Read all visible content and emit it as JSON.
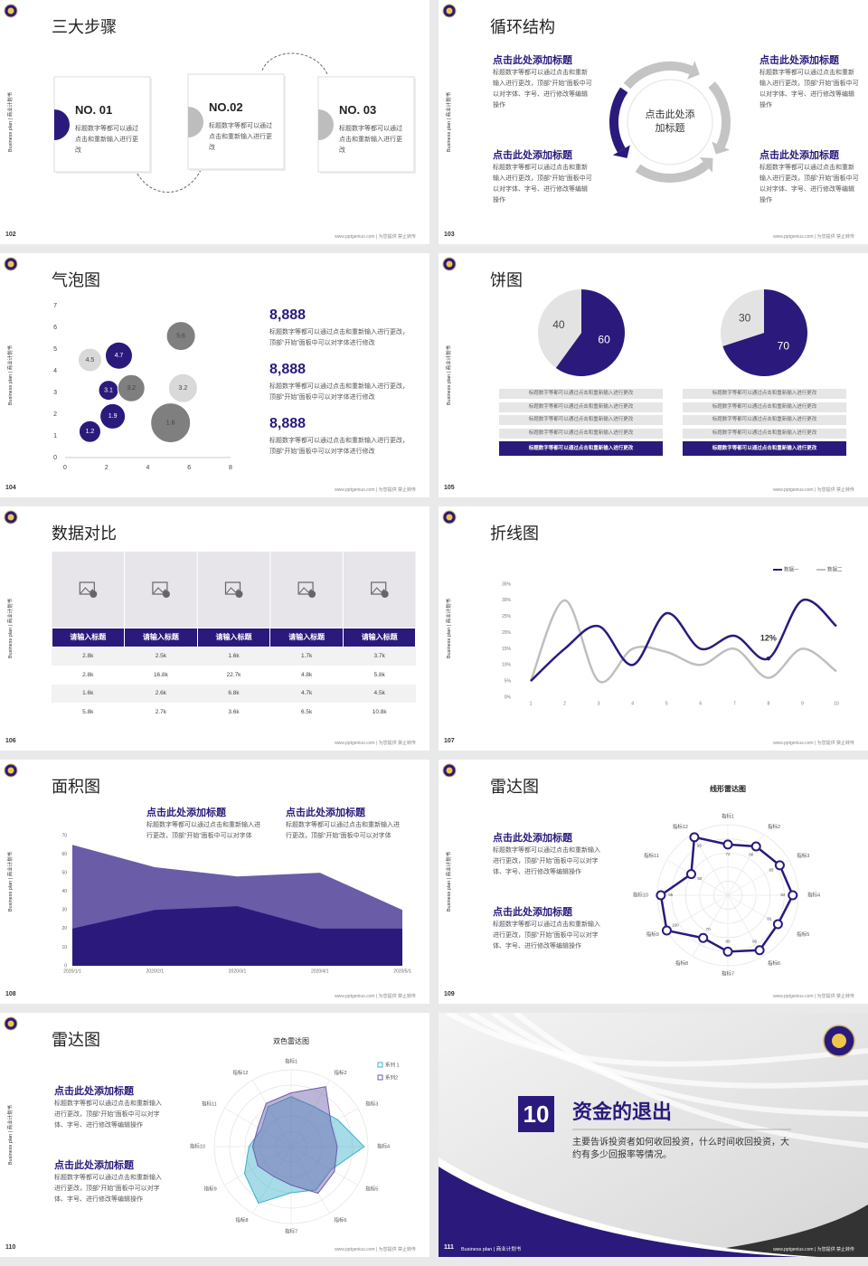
{
  "footer": "www.pptgenius.com | 为您提供 禁止转传",
  "side_label": "Business plan | 商业计划书",
  "slides": [
    {
      "page": "102",
      "title": "三大步骤",
      "steps": [
        {
          "label": "NO. 01",
          "text": "标题数字等都可以通过点击和重新输入进行更改"
        },
        {
          "label": "NO.02",
          "text": "标题数字等都可以通过点击和重新输入进行更改"
        },
        {
          "label": "NO. 03",
          "text": "标题数字等都可以通过点击和重新输入进行更改"
        }
      ]
    },
    {
      "page": "103",
      "title": "循环结构",
      "center": "点击此处添加标题",
      "blocks": [
        {
          "heading": "点击此处添加标题",
          "text": "标题数字等都可以通过点击和重新输入进行更改，顶部“开始”面板中可以对字体、字号、进行修改等编辑操作"
        },
        {
          "heading": "点击此处添加标题",
          "text": "标题数字等都可以通过点击和重新输入进行更改，顶部“开始”面板中可以对字体、字号、进行修改等编辑操作"
        },
        {
          "heading": "点击此处添加标题",
          "text": "标题数字等都可以通过点击和重新输入进行更改，顶部“开始”面板中可以对字体、字号、进行修改等编辑操作"
        },
        {
          "heading": "点击此处添加标题",
          "text": "标题数字等都可以通过点击和重新输入进行更改，顶部“开始”面板中可以对字体、字号、进行修改等编辑操作"
        }
      ]
    },
    {
      "page": "104",
      "title": "气泡图",
      "chart_data": {
        "type": "bubble",
        "xlim": [
          0,
          8
        ],
        "xticks": [
          0,
          2,
          4,
          6,
          8
        ],
        "ylim": [
          0,
          7
        ],
        "yticks": [
          0,
          1,
          2,
          3,
          4,
          5,
          6,
          7
        ],
        "series": [
          {
            "color": "#2b1a7c",
            "x": [
              2.6,
              2.1,
              2.3,
              1.2
            ],
            "values": [
              4.7,
              3.1,
              1.9,
              1.2
            ],
            "sizes": [
              15,
              11,
              14,
              12
            ]
          },
          {
            "color": "#7f7f7f",
            "x": [
              5.6,
              3.2,
              5.1
            ],
            "values": [
              5.6,
              3.2,
              1.6
            ],
            "sizes": [
              16,
              15,
              22
            ]
          },
          {
            "color": "#d9d9d9",
            "x": [
              1.2,
              5.7
            ],
            "values": [
              4.5,
              3.2
            ],
            "sizes": [
              13,
              16
            ]
          }
        ]
      },
      "stats": [
        {
          "value": "8,888",
          "text": "标题数字等都可以通过点击和重新输入进行更改，顶部“开始”面板中可以对字体进行修改"
        },
        {
          "value": "8,888",
          "text": "标题数字等都可以通过点击和重新输入进行更改，顶部“开始”面板中可以对字体进行修改"
        },
        {
          "value": "8,888",
          "text": "标题数字等都可以通过点击和重新输入进行更改，顶部“开始”面板中可以对字体进行修改"
        }
      ]
    },
    {
      "page": "105",
      "title": "饼图",
      "chart_data": [
        {
          "type": "pie",
          "values": [
            60,
            40
          ],
          "colors": [
            "#2b1a7c",
            "#e3e3e3"
          ]
        },
        {
          "type": "pie",
          "values": [
            70,
            30
          ],
          "colors": [
            "#2b1a7c",
            "#e3e3e3"
          ]
        }
      ],
      "lists": [
        [
          "标题数字等都可以通过点击和重新输入进行更改",
          "标题数字等都可以通过点击和重新输入进行更改",
          "标题数字等都可以通过点击和重新输入进行更改",
          "标题数字等都可以通过点击和重新输入进行更改",
          "标题数字等都可以通过点击和重新输入进行更改"
        ],
        [
          "标题数字等都可以通过点击和重新输入进行更改",
          "标题数字等都可以通过点击和重新输入进行更改",
          "标题数字等都可以通过点击和重新输入进行更改",
          "标题数字等都可以通过点击和重新输入进行更改",
          "标题数字等都可以通过点击和重新输入进行更改"
        ]
      ]
    },
    {
      "page": "106",
      "title": "数据对比",
      "table": {
        "headers": [
          "请输入标题",
          "请输入标题",
          "请输入标题",
          "请输入标题",
          "请输入标题"
        ],
        "rows": [
          [
            "2.8k",
            "2.5k",
            "1.6k",
            "1.7k",
            "3.7k"
          ],
          [
            "2.8k",
            "16.8k",
            "22.7k",
            "4.8k",
            "5.8k"
          ],
          [
            "1.6k",
            "2.6k",
            "6.8k",
            "4.7k",
            "4.5k"
          ],
          [
            "5.8k",
            "2.7k",
            "3.6k",
            "6.5k",
            "10.8k"
          ]
        ]
      }
    },
    {
      "page": "107",
      "title": "折线图",
      "chart_data": {
        "type": "line",
        "x": [
          1,
          2,
          3,
          4,
          5,
          6,
          7,
          8,
          9,
          10
        ],
        "xlim": [
          1,
          10
        ],
        "xticks": [
          1,
          2,
          3,
          4,
          5,
          6,
          7,
          8,
          9,
          10
        ],
        "ylim": [
          0,
          35
        ],
        "yticks": [
          {
            "value": 0,
            "label": "0%"
          },
          {
            "value": 5,
            "label": "5%"
          },
          {
            "value": 10,
            "label": "10%"
          },
          {
            "value": 15,
            "label": "15%"
          },
          {
            "value": 20,
            "label": "20%"
          },
          {
            "value": 25,
            "label": "25%"
          },
          {
            "value": 30,
            "label": "30%"
          },
          {
            "value": 35,
            "label": "35%"
          }
        ],
        "legend": "top-right",
        "series": [
          {
            "name": "数据一",
            "color": "#2b1a7c",
            "values": [
              5,
              15,
              22,
              10,
              26,
              15,
              19,
              12,
              30,
              22
            ],
            "value_labels": [
              null,
              null,
              null,
              null,
              null,
              null,
              null,
              "12%",
              null,
              null
            ]
          },
          {
            "name": "数据二",
            "color": "#bfbfbf",
            "values": [
              5,
              30,
              5,
              15,
              14,
              10,
              15,
              6,
              15,
              8
            ]
          }
        ]
      }
    },
    {
      "page": "108",
      "title": "面积图",
      "chart_data": {
        "type": "area",
        "categories": [
          "2020/1/1",
          "2020/2/1",
          "2020/3/1",
          "2020/4/1",
          "2020/5/1"
        ],
        "ylim": [
          0,
          70
        ],
        "yticks": [
          0,
          10,
          20,
          30,
          40,
          50,
          60,
          70
        ],
        "series": [
          {
            "color": "#6b5ca8",
            "values": [
              65,
              53,
              48,
              50,
              30
            ]
          },
          {
            "color": "#2b1a7c",
            "values": [
              20,
              30,
              32,
              20,
              20
            ]
          }
        ]
      },
      "blocks": [
        {
          "heading": "点击此处添加标题",
          "text": "标题数字等都可以通过点击和重新输入进行更改，顶部“开始”面板中可以对字体"
        },
        {
          "heading": "点击此处添加标题",
          "text": "标题数字等都可以通过点击和重新输入进行更改，顶部“开始”面板中可以对字体"
        }
      ]
    },
    {
      "page": "109",
      "title": "雷达图",
      "chart_data": {
        "type": "radar",
        "title": "线形雷达图",
        "rlim": [
          0,
          100
        ],
        "categories": [
          "指标1",
          "指标2",
          "指标3",
          "指标4",
          "指标5",
          "指标6",
          "指标7",
          "指标8",
          "指标9",
          "指标10",
          "指标11",
          "指标12"
        ],
        "series": [
          {
            "color": "#2b1a7c",
            "values": [
              72,
              80,
              85,
              92,
              82,
              90,
              80,
              70,
              100,
              95,
              60,
              95
            ]
          }
        ]
      },
      "blocks": [
        {
          "heading": "点击此处添加标题",
          "text": "标题数字等都可以通过点击和重新输入进行更改，顶部“开始”面板中可以对字体、字号、进行修改等编辑操作"
        },
        {
          "heading": "点击此处添加标题",
          "text": "标题数字等都可以通过点击和重新输入进行更改，顶部“开始”面板中可以对字体、字号、进行修改等编辑操作"
        }
      ]
    },
    {
      "page": "110",
      "title": "雷达图",
      "chart_data": {
        "type": "radar",
        "title": "双色雷达图",
        "rlim": [
          0,
          100
        ],
        "categories": [
          "指标1",
          "指标2",
          "指标3",
          "指标4",
          "指标5",
          "指标6",
          "指标7",
          "指标8",
          "指标9",
          "指标10",
          "指标11",
          "指标12"
        ],
        "series": [
          {
            "name": "系列 1",
            "color": "#3ab0cc",
            "values": [
              65,
              60,
              70,
              95,
              60,
              65,
              60,
              85,
              70,
              55,
              45,
              60
            ]
          },
          {
            "name": "系列2",
            "color": "#6b5ca8",
            "values": [
              70,
              90,
              60,
              60,
              65,
              70,
              50,
              45,
              50,
              50,
              50,
              65
            ]
          }
        ]
      },
      "blocks": [
        {
          "heading": "点击此处添加标题",
          "text": "标题数字等都可以通过点击和重新输入进行更改，顶部“开始”面板中可以对字体、字号、进行修改等编辑操作"
        },
        {
          "heading": "点击此处添加标题",
          "text": "标题数字等都可以通过点击和重新输入进行更改，顶部“开始”面板中可以对字体、字号、进行修改等编辑操作"
        }
      ]
    },
    {
      "page": "111",
      "number": "10",
      "title": "资金的退出",
      "text": "主要告诉投资者如何收回投资，什么时间收回投资，大约有多少回报率等情况。"
    }
  ]
}
